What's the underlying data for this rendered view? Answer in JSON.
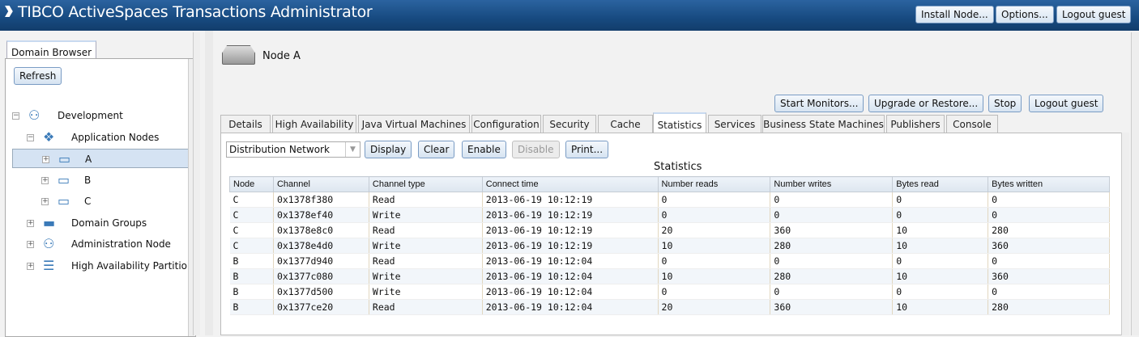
{
  "app": {
    "title": "TIBCO ActiveSpaces Transactions Administrator",
    "header_buttons": [
      "Install Node...",
      "Options...",
      "Logout guest"
    ]
  },
  "left": {
    "tab": "Domain Browser",
    "refresh": "Refresh",
    "tree": [
      {
        "label": "Development",
        "icon": "hierarchy-icon",
        "level": 0,
        "exp": "−"
      },
      {
        "label": "Application Nodes",
        "icon": "cubes-icon",
        "level": 1,
        "exp": "−"
      },
      {
        "label": "A",
        "icon": "drive-icon",
        "level": 2,
        "exp": "+",
        "selected": true
      },
      {
        "label": "B",
        "icon": "drive-icon",
        "level": 2,
        "exp": "+"
      },
      {
        "label": "C",
        "icon": "drive-icon",
        "level": 2,
        "exp": "+"
      },
      {
        "label": "Domain Groups",
        "icon": "folder-icon",
        "level": 1,
        "exp": "+"
      },
      {
        "label": "Administration Node",
        "icon": "hierarchy-icon",
        "level": 1,
        "exp": "+"
      },
      {
        "label": "High Availability Partitions",
        "icon": "database-icon",
        "level": 1,
        "exp": "+"
      }
    ]
  },
  "node": {
    "title": "Node A",
    "actions": [
      "Start Monitors...",
      "Upgrade or Restore...",
      "Stop",
      "Logout guest"
    ]
  },
  "tabs": [
    "Details",
    "High Availability",
    "Java Virtual Machines",
    "Configuration",
    "Security",
    "Cache",
    "Statistics",
    "Services",
    "Business State Machines",
    "Publishers",
    "Console"
  ],
  "active_tab": "Statistics",
  "stats": {
    "select": "Distribution Network",
    "buttons": [
      "Display",
      "Clear",
      "Enable",
      "Disable",
      "Print..."
    ],
    "title": "Statistics",
    "columns": [
      "Node",
      "Channel",
      "Channel type",
      "Connect time",
      "Number reads",
      "Number writes",
      "Bytes read",
      "Bytes written"
    ],
    "rows": [
      [
        "C",
        "0x1378f380",
        "Read",
        "2013-06-19 10:12:19",
        "0",
        "0",
        "0",
        "0"
      ],
      [
        "C",
        "0x1378ef40",
        "Write",
        "2013-06-19 10:12:19",
        "0",
        "0",
        "0",
        "0"
      ],
      [
        "C",
        "0x1378e8c0",
        "Read",
        "2013-06-19 10:12:19",
        "20",
        "360",
        "10",
        "280"
      ],
      [
        "C",
        "0x1378e4d0",
        "Write",
        "2013-06-19 10:12:19",
        "10",
        "280",
        "10",
        "360"
      ],
      [
        "B",
        "0x1377d940",
        "Read",
        "2013-06-19 10:12:04",
        "0",
        "0",
        "0",
        "0"
      ],
      [
        "B",
        "0x1377c080",
        "Write",
        "2013-06-19 10:12:04",
        "10",
        "280",
        "10",
        "360"
      ],
      [
        "B",
        "0x1377d500",
        "Write",
        "2013-06-19 10:12:04",
        "0",
        "0",
        "0",
        "0"
      ],
      [
        "B",
        "0x1377ce20",
        "Read",
        "2013-06-19 10:12:04",
        "20",
        "360",
        "10",
        "280"
      ]
    ]
  }
}
